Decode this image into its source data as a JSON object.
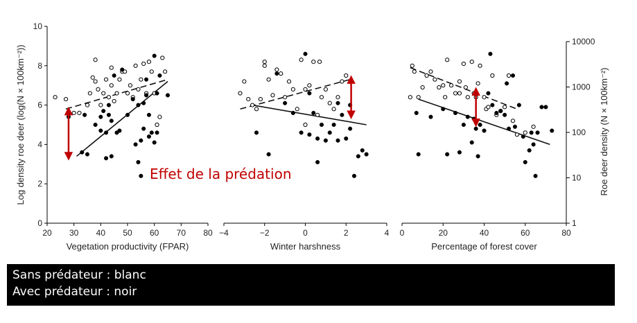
{
  "annotation": {
    "text": "Effet de la prédation",
    "color": "#c00000"
  },
  "caption": {
    "line1": "Sans prédateur : blanc",
    "line2": "Avec prédateur : noir"
  },
  "colors": {
    "arrow": "#c00000",
    "ink": "#000000"
  },
  "chart_data": [
    {
      "type": "scatter",
      "xlabel": "Vegetation productivity (FPAR)",
      "ylabel": "Log density roe deer (log(N × 100km⁻²))",
      "xlim": [
        20,
        80
      ],
      "ylim": [
        0,
        10
      ],
      "xticks": [
        "20",
        "30",
        "40",
        "50",
        "60",
        "70",
        "80"
      ],
      "yticks": [
        "0",
        "2",
        "4",
        "6",
        "8",
        "10"
      ],
      "series": [
        {
          "marker": "open",
          "points": [
            [
              23,
              6.4
            ],
            [
              27,
              6.3
            ],
            [
              30,
              5.6
            ],
            [
              32,
              5.6
            ],
            [
              35,
              6.0
            ],
            [
              36,
              6.6
            ],
            [
              37,
              7.4
            ],
            [
              38,
              7.2
            ],
            [
              38,
              8.3
            ],
            [
              39,
              6.8
            ],
            [
              40,
              6.0
            ],
            [
              41,
              6.6
            ],
            [
              42,
              7.3
            ],
            [
              43,
              6.4
            ],
            [
              44,
              7.0
            ],
            [
              44,
              7.9
            ],
            [
              45,
              6.2
            ],
            [
              46,
              6.6
            ],
            [
              47,
              7.3
            ],
            [
              48,
              7.7
            ],
            [
              49,
              7.7
            ],
            [
              50,
              6.6
            ],
            [
              51,
              7.0
            ],
            [
              52,
              6.4
            ],
            [
              53,
              8.0
            ],
            [
              54,
              6.8
            ],
            [
              55,
              7.3
            ],
            [
              56,
              8.1
            ],
            [
              57,
              6.6
            ],
            [
              58,
              8.2
            ],
            [
              59,
              7.7
            ],
            [
              60,
              6.6
            ],
            [
              61,
              5.0
            ],
            [
              62,
              5.4
            ],
            [
              63,
              8.4
            ],
            [
              64,
              7.7
            ]
          ]
        },
        {
          "marker": "filled",
          "points": [
            [
              28,
              5.4
            ],
            [
              33,
              3.6
            ],
            [
              34,
              5.5
            ],
            [
              35,
              3.5
            ],
            [
              38,
              5.0
            ],
            [
              40,
              4.7
            ],
            [
              40,
              5.4
            ],
            [
              41,
              5.7
            ],
            [
              42,
              4.6
            ],
            [
              42,
              3.3
            ],
            [
              43,
              5.5
            ],
            [
              43,
              6.0
            ],
            [
              44,
              3.4
            ],
            [
              44,
              5.2
            ],
            [
              45,
              7.5
            ],
            [
              46,
              4.6
            ],
            [
              47,
              4.7
            ],
            [
              48,
              7.8
            ],
            [
              50,
              5.5
            ],
            [
              52,
              6.3
            ],
            [
              53,
              4.0
            ],
            [
              54,
              3.1
            ],
            [
              54,
              6.0
            ],
            [
              55,
              4.2
            ],
            [
              56,
              6.1
            ],
            [
              56,
              4.8
            ],
            [
              57,
              6.5
            ],
            [
              57,
              7.3
            ],
            [
              58,
              5.5
            ],
            [
              58,
              4.4
            ],
            [
              59,
              4.6
            ],
            [
              60,
              8.5
            ],
            [
              60,
              4.1
            ],
            [
              61,
              4.6
            ],
            [
              61,
              6.6
            ],
            [
              62,
              7.5
            ],
            [
              65,
              6.5
            ],
            [
              55,
              2.4
            ]
          ]
        }
      ],
      "lines": [
        {
          "style": "dashed",
          "from": [
            27,
            5.8
          ],
          "to": [
            65,
            7.3
          ]
        },
        {
          "style": "solid",
          "from": [
            31,
            3.4
          ],
          "to": [
            65,
            7.2
          ]
        }
      ],
      "arrow": {
        "x": 28,
        "y1": 5.7,
        "y2": 3.4
      }
    },
    {
      "type": "scatter",
      "xlabel": "Winter harshness",
      "xlim": [
        -4,
        4
      ],
      "ylim": [
        0,
        10
      ],
      "xticks": [
        "−4",
        "−2",
        "0",
        "2",
        "4"
      ],
      "series": [
        {
          "marker": "open",
          "points": [
            [
              -3.2,
              6.6
            ],
            [
              -3.0,
              7.2
            ],
            [
              -2.8,
              6.3
            ],
            [
              -2.6,
              6.0
            ],
            [
              -2.4,
              5.8
            ],
            [
              -2.2,
              6.3
            ],
            [
              -2.0,
              8.0
            ],
            [
              -2.0,
              8.2
            ],
            [
              -1.8,
              7.3
            ],
            [
              -1.6,
              6.5
            ],
            [
              -1.4,
              7.8
            ],
            [
              -1.2,
              7.6
            ],
            [
              -1.0,
              6.4
            ],
            [
              -0.8,
              7.2
            ],
            [
              -0.6,
              6.8
            ],
            [
              -0.4,
              5.8
            ],
            [
              -0.2,
              8.3
            ],
            [
              0.0,
              5.0
            ],
            [
              0.0,
              6.8
            ],
            [
              0.2,
              7.0
            ],
            [
              0.4,
              8.2
            ],
            [
              0.6,
              5.5
            ],
            [
              0.8,
              6.4
            ],
            [
              1.0,
              6.8
            ],
            [
              1.2,
              6.1
            ],
            [
              1.4,
              5.8
            ],
            [
              1.6,
              6.4
            ],
            [
              1.8,
              7.2
            ],
            [
              2.0,
              7.5
            ],
            [
              0.7,
              8.2
            ]
          ]
        },
        {
          "marker": "filled",
          "points": [
            [
              -2.4,
              4.6
            ],
            [
              -1.8,
              3.5
            ],
            [
              -1.4,
              7.6
            ],
            [
              -1.0,
              6.1
            ],
            [
              -0.6,
              5.6
            ],
            [
              -0.2,
              4.6
            ],
            [
              0.0,
              8.6
            ],
            [
              0.2,
              6.6
            ],
            [
              0.2,
              4.5
            ],
            [
              0.4,
              5.6
            ],
            [
              0.6,
              4.3
            ],
            [
              0.6,
              3.1
            ],
            [
              0.8,
              5.0
            ],
            [
              1.0,
              4.2
            ],
            [
              1.2,
              4.6
            ],
            [
              1.4,
              5.0
            ],
            [
              1.6,
              6.1
            ],
            [
              1.6,
              4.2
            ],
            [
              1.8,
              5.5
            ],
            [
              2.0,
              4.3
            ],
            [
              2.2,
              4.8
            ],
            [
              2.4,
              2.4
            ],
            [
              2.6,
              3.4
            ],
            [
              2.8,
              3.7
            ],
            [
              3.0,
              3.5
            ],
            [
              2.2,
              6.0
            ]
          ]
        }
      ],
      "lines": [
        {
          "style": "dashed",
          "from": [
            -3.2,
            5.8
          ],
          "to": [
            2.2,
            7.3
          ]
        },
        {
          "style": "solid",
          "from": [
            -2.6,
            6.0
          ],
          "to": [
            3.0,
            5.0
          ]
        }
      ],
      "arrow": {
        "x": 2.25,
        "y1": 7.3,
        "y2": 5.5
      }
    },
    {
      "type": "scatter",
      "xlabel": "Percentage of forest cover",
      "ylabel": "Roe deer density (N × 100km⁻²)",
      "xlim": [
        0,
        80
      ],
      "ylim": [
        0,
        10
      ],
      "xticks": [
        "0",
        "20",
        "40",
        "60",
        "80"
      ],
      "yticks_right": [
        "1",
        "10",
        "100",
        "1000",
        "10000"
      ],
      "series": [
        {
          "marker": "open",
          "points": [
            [
              4,
              6.4
            ],
            [
              5,
              8.0
            ],
            [
              6,
              7.7
            ],
            [
              8,
              6.4
            ],
            [
              10,
              6.9
            ],
            [
              12,
              7.5
            ],
            [
              14,
              7.7
            ],
            [
              16,
              7.3
            ],
            [
              18,
              6.9
            ],
            [
              20,
              7.0
            ],
            [
              21,
              6.4
            ],
            [
              22,
              8.3
            ],
            [
              24,
              7.0
            ],
            [
              26,
              6.6
            ],
            [
              28,
              6.6
            ],
            [
              28,
              7.2
            ],
            [
              30,
              8.1
            ],
            [
              31,
              6.9
            ],
            [
              32,
              6.4
            ],
            [
              34,
              8.2
            ],
            [
              35,
              6.6
            ],
            [
              36,
              6.4
            ],
            [
              37,
              7.1
            ],
            [
              38,
              8.0
            ],
            [
              40,
              6.4
            ],
            [
              41,
              5.8
            ],
            [
              42,
              5.9
            ],
            [
              44,
              7.5
            ],
            [
              46,
              5.5
            ],
            [
              48,
              5.7
            ],
            [
              50,
              5.9
            ],
            [
              52,
              7.5
            ],
            [
              54,
              5.2
            ],
            [
              56,
              4.5
            ],
            [
              60,
              4.6
            ],
            [
              64,
              4.9
            ]
          ]
        },
        {
          "marker": "filled",
          "points": [
            [
              7,
              5.6
            ],
            [
              8,
              3.5
            ],
            [
              14,
              5.4
            ],
            [
              20,
              5.8
            ],
            [
              22,
              3.5
            ],
            [
              26,
              5.6
            ],
            [
              28,
              3.6
            ],
            [
              30,
              5.0
            ],
            [
              32,
              5.4
            ],
            [
              34,
              4.1
            ],
            [
              35,
              5.3
            ],
            [
              36,
              4.8
            ],
            [
              37,
              3.4
            ],
            [
              38,
              5.0
            ],
            [
              40,
              4.7
            ],
            [
              42,
              6.6
            ],
            [
              43,
              8.6
            ],
            [
              44,
              6.0
            ],
            [
              46,
              5.6
            ],
            [
              48,
              5.7
            ],
            [
              50,
              5.5
            ],
            [
              51,
              7.1
            ],
            [
              52,
              4.8
            ],
            [
              54,
              7.5
            ],
            [
              55,
              4.9
            ],
            [
              57,
              6.0
            ],
            [
              59,
              4.4
            ],
            [
              60,
              3.1
            ],
            [
              62,
              3.7
            ],
            [
              63,
              4.6
            ],
            [
              64,
              4.0
            ],
            [
              65,
              2.4
            ],
            [
              66,
              4.6
            ],
            [
              68,
              5.9
            ],
            [
              70,
              5.9
            ],
            [
              73,
              4.7
            ]
          ]
        }
      ],
      "lines": [
        {
          "style": "dashed",
          "from": [
            4,
            7.9
          ],
          "to": [
            56,
            5.8
          ]
        },
        {
          "style": "solid",
          "from": [
            8,
            6.3
          ],
          "to": [
            72,
            4.0
          ]
        }
      ],
      "arrow": {
        "x": 36,
        "y1": 6.7,
        "y2": 5.1
      }
    }
  ]
}
